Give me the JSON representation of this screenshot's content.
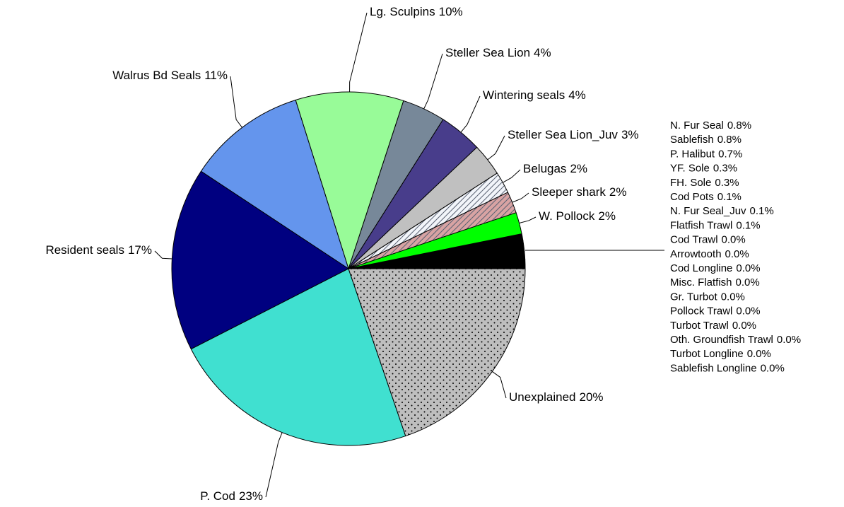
{
  "chart_data": {
    "type": "pie",
    "categories": [
      "N. Fur Seal",
      "Sablefish",
      "P. Halibut",
      "YF. Sole",
      "FH. Sole",
      "Cod Pots",
      "N. Fur Seal_Juv",
      "Flatfish Trawl",
      "Cod Trawl",
      "Arrowtooth",
      "Cod Longline",
      "Misc. Flatfish",
      "Gr. Turbot",
      "Pollock Trawl",
      "Turbot Trawl",
      "Oth. Groundfish Trawl",
      "Turbot Longline",
      "Sablefish Longline",
      "W. Pollock",
      "Sleeper shark",
      "Belugas",
      "Steller Sea Lion_Juv",
      "Wintering seals",
      "Steller Sea Lion",
      "Lg. Sculpins",
      "Walrus Bd Seals",
      "Resident seals",
      "P. Cod",
      "Unexplained"
    ],
    "values": [
      0.8,
      0.8,
      0.7,
      0.3,
      0.3,
      0.1,
      0.1,
      0.1,
      0.0,
      0.0,
      0.0,
      0.0,
      0.0,
      0.0,
      0.0,
      0.0,
      0.0,
      0.0,
      2,
      2,
      2,
      3,
      4,
      4,
      10,
      11,
      17,
      23,
      20
    ],
    "value_labels": [
      "0.8%",
      "0.8%",
      "0.7%",
      "0.3%",
      "0.3%",
      "0.1%",
      "0.1%",
      "0.1%",
      "0.0%",
      "0.0%",
      "0.0%",
      "0.0%",
      "0.0%",
      "0.0%",
      "0.0%",
      "0.0%",
      "0.0%",
      "0.0%",
      "2%",
      "2%",
      "2%",
      "3%",
      "4%",
      "4%",
      "10%",
      "11%",
      "17%",
      "23%",
      "20%"
    ],
    "colors": [
      "#000000",
      "#000000",
      "#000000",
      "#000000",
      "#000000",
      "#000000",
      "#000000",
      "#000000",
      "#000000",
      "#000000",
      "#000000",
      "#000000",
      "#000000",
      "#000000",
      "#000000",
      "#000000",
      "#000000",
      "#000000",
      "#00ff00",
      "#d8a3a3",
      "#f2f5fa",
      "#c0c0c0",
      "#483d8b",
      "#778899",
      "#98fb98",
      "#6495ed",
      "#000080",
      "#40e0d0",
      "#bebebe"
    ],
    "patterns": [
      null,
      null,
      null,
      null,
      null,
      null,
      null,
      null,
      null,
      null,
      null,
      null,
      null,
      null,
      null,
      null,
      null,
      null,
      null,
      "hatch",
      "hatch",
      null,
      null,
      null,
      null,
      null,
      null,
      null,
      "dots"
    ]
  }
}
